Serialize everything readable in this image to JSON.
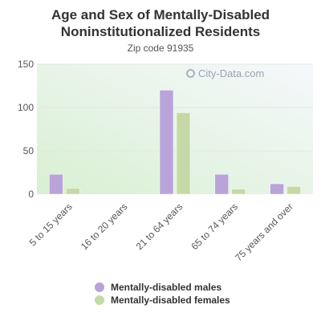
{
  "chart_data": {
    "type": "bar",
    "title": "Age and Sex of Mentally-Disabled Noninstitutionalized Residents",
    "subtitle": "Zip code 91935",
    "categories": [
      "5 to 15 years",
      "16 to 20 years",
      "21 to 64 years",
      "65 to 74 years",
      "75 years and over"
    ],
    "series": [
      {
        "name": "Mentally-disabled males",
        "color": "#b9a3d9",
        "values": [
          23,
          0,
          120,
          23,
          12
        ]
      },
      {
        "name": "Mentally-disabled females",
        "color": "#c5d9a6",
        "values": [
          7,
          0,
          94,
          6,
          9
        ]
      }
    ],
    "ylim": [
      0,
      150
    ],
    "yticks": [
      0,
      50,
      100,
      150
    ],
    "grid": true,
    "legend_position": "bottom"
  },
  "watermark": {
    "text": "City-Data.com"
  }
}
